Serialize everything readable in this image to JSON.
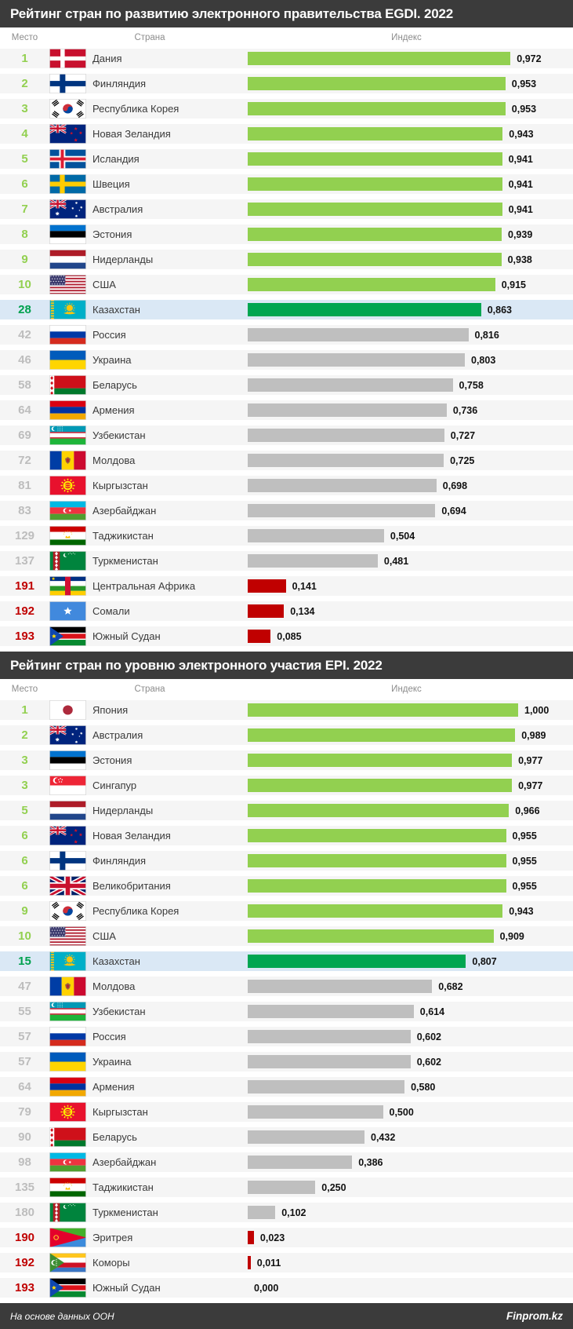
{
  "columns": {
    "rank": "Место",
    "country": "Страна",
    "index": "Индекс"
  },
  "footer": {
    "source": "На основе данных ООН",
    "brand": "Finprom.kz"
  },
  "colors": {
    "header_dark": "#3B3B3B",
    "top_green": "#92D050",
    "kazakhstan_green": "#00A651",
    "neutral_gray": "#BFBFBF",
    "bottom_red": "#C00000",
    "highlight_row_blue": "#DAE8F5",
    "row_background": "#F5F5F5"
  },
  "chart_data": [
    {
      "type": "bar",
      "title": "Рейтинг стран по развитию электронного правительства EGDI. 2022",
      "xlim": [
        0,
        1
      ],
      "legend_position": "none",
      "grid": false,
      "rows": [
        {
          "rank": "1",
          "country": "Дания",
          "flag": "denmark",
          "value": "0,972",
          "value_num": 0.972,
          "status": "top"
        },
        {
          "rank": "2",
          "country": "Финляндия",
          "flag": "finland",
          "value": "0,953",
          "value_num": 0.953,
          "status": "top"
        },
        {
          "rank": "3",
          "country": "Республика Корея",
          "flag": "korea",
          "value": "0,953",
          "value_num": 0.953,
          "status": "top"
        },
        {
          "rank": "4",
          "country": "Новая Зеландия",
          "flag": "new-zealand",
          "value": "0,943",
          "value_num": 0.943,
          "status": "top"
        },
        {
          "rank": "5",
          "country": "Исландия",
          "flag": "iceland",
          "value": "0,941",
          "value_num": 0.941,
          "status": "top"
        },
        {
          "rank": "6",
          "country": "Швеция",
          "flag": "sweden",
          "value": "0,941",
          "value_num": 0.941,
          "status": "top"
        },
        {
          "rank": "7",
          "country": "Австралия",
          "flag": "australia",
          "value": "0,941",
          "value_num": 0.941,
          "status": "top"
        },
        {
          "rank": "8",
          "country": "Эстония",
          "flag": "estonia",
          "value": "0,939",
          "value_num": 0.939,
          "status": "top"
        },
        {
          "rank": "9",
          "country": "Нидерланды",
          "flag": "netherlands",
          "value": "0,938",
          "value_num": 0.938,
          "status": "top"
        },
        {
          "rank": "10",
          "country": "США",
          "flag": "usa",
          "value": "0,915",
          "value_num": 0.915,
          "status": "top"
        },
        {
          "rank": "28",
          "country": "Казахстан",
          "flag": "kazakhstan",
          "value": "0,863",
          "value_num": 0.863,
          "status": "kz"
        },
        {
          "rank": "42",
          "country": "Россия",
          "flag": "russia",
          "value": "0,816",
          "value_num": 0.816,
          "status": "mid"
        },
        {
          "rank": "46",
          "country": "Украина",
          "flag": "ukraine",
          "value": "0,803",
          "value_num": 0.803,
          "status": "mid"
        },
        {
          "rank": "58",
          "country": "Беларусь",
          "flag": "belarus",
          "value": "0,758",
          "value_num": 0.758,
          "status": "mid"
        },
        {
          "rank": "64",
          "country": "Армения",
          "flag": "armenia",
          "value": "0,736",
          "value_num": 0.736,
          "status": "mid"
        },
        {
          "rank": "69",
          "country": "Узбекистан",
          "flag": "uzbekistan",
          "value": "0,727",
          "value_num": 0.727,
          "status": "mid"
        },
        {
          "rank": "72",
          "country": "Молдова",
          "flag": "moldova",
          "value": "0,725",
          "value_num": 0.725,
          "status": "mid"
        },
        {
          "rank": "81",
          "country": "Кыргызстан",
          "flag": "kyrgyzstan",
          "value": "0,698",
          "value_num": 0.698,
          "status": "mid"
        },
        {
          "rank": "83",
          "country": "Азербайджан",
          "flag": "azerbaijan",
          "value": "0,694",
          "value_num": 0.694,
          "status": "mid"
        },
        {
          "rank": "129",
          "country": "Таджикистан",
          "flag": "tajikistan",
          "value": "0,504",
          "value_num": 0.504,
          "status": "mid"
        },
        {
          "rank": "137",
          "country": "Туркменистан",
          "flag": "turkmenistan",
          "value": "0,481",
          "value_num": 0.481,
          "status": "mid"
        },
        {
          "rank": "191",
          "country": "Центральная Африка",
          "flag": "central-african",
          "value": "0,141",
          "value_num": 0.141,
          "status": "low"
        },
        {
          "rank": "192",
          "country": "Сомали",
          "flag": "somalia",
          "value": "0,134",
          "value_num": 0.134,
          "status": "low"
        },
        {
          "rank": "193",
          "country": "Южный Судан",
          "flag": "south-sudan",
          "value": "0,085",
          "value_num": 0.085,
          "status": "low"
        }
      ]
    },
    {
      "type": "bar",
      "title": "Рейтинг стран по уровню электронного участия EPI. 2022",
      "xlim": [
        0,
        1
      ],
      "legend_position": "none",
      "grid": false,
      "rows": [
        {
          "rank": "1",
          "country": "Япония",
          "flag": "japan",
          "value": "1,000",
          "value_num": 1.0,
          "status": "top"
        },
        {
          "rank": "2",
          "country": "Австралия",
          "flag": "australia",
          "value": "0,989",
          "value_num": 0.989,
          "status": "top"
        },
        {
          "rank": "3",
          "country": "Эстония",
          "flag": "estonia",
          "value": "0,977",
          "value_num": 0.977,
          "status": "top"
        },
        {
          "rank": "3",
          "country": "Сингапур",
          "flag": "singapore",
          "value": "0,977",
          "value_num": 0.977,
          "status": "top"
        },
        {
          "rank": "5",
          "country": "Нидерланды",
          "flag": "netherlands",
          "value": "0,966",
          "value_num": 0.966,
          "status": "top"
        },
        {
          "rank": "6",
          "country": "Новая Зеландия",
          "flag": "new-zealand",
          "value": "0,955",
          "value_num": 0.955,
          "status": "top"
        },
        {
          "rank": "6",
          "country": "Финляндия",
          "flag": "finland",
          "value": "0,955",
          "value_num": 0.955,
          "status": "top"
        },
        {
          "rank": "6",
          "country": "Великобритания",
          "flag": "uk",
          "value": "0,955",
          "value_num": 0.955,
          "status": "top"
        },
        {
          "rank": "9",
          "country": "Республика Корея",
          "flag": "korea",
          "value": "0,943",
          "value_num": 0.943,
          "status": "top"
        },
        {
          "rank": "10",
          "country": "США",
          "flag": "usa",
          "value": "0,909",
          "value_num": 0.909,
          "status": "top"
        },
        {
          "rank": "15",
          "country": "Казахстан",
          "flag": "kazakhstan",
          "value": "0,807",
          "value_num": 0.807,
          "status": "kz"
        },
        {
          "rank": "47",
          "country": "Молдова",
          "flag": "moldova",
          "value": "0,682",
          "value_num": 0.682,
          "status": "mid"
        },
        {
          "rank": "55",
          "country": "Узбекистан",
          "flag": "uzbekistan",
          "value": "0,614",
          "value_num": 0.614,
          "status": "mid"
        },
        {
          "rank": "57",
          "country": "Россия",
          "flag": "russia",
          "value": "0,602",
          "value_num": 0.602,
          "status": "mid"
        },
        {
          "rank": "57",
          "country": "Украина",
          "flag": "ukraine",
          "value": "0,602",
          "value_num": 0.602,
          "status": "mid"
        },
        {
          "rank": "64",
          "country": "Армения",
          "flag": "armenia",
          "value": "0,580",
          "value_num": 0.58,
          "status": "mid"
        },
        {
          "rank": "79",
          "country": "Кыргызстан",
          "flag": "kyrgyzstan",
          "value": "0,500",
          "value_num": 0.5,
          "status": "mid"
        },
        {
          "rank": "90",
          "country": "Беларусь",
          "flag": "belarus",
          "value": "0,432",
          "value_num": 0.432,
          "status": "mid"
        },
        {
          "rank": "98",
          "country": "Азербайджан",
          "flag": "azerbaijan",
          "value": "0,386",
          "value_num": 0.386,
          "status": "mid"
        },
        {
          "rank": "135",
          "country": "Таджикистан",
          "flag": "tajikistan",
          "value": "0,250",
          "value_num": 0.25,
          "status": "mid"
        },
        {
          "rank": "180",
          "country": "Туркменистан",
          "flag": "turkmenistan",
          "value": "0,102",
          "value_num": 0.102,
          "status": "mid"
        },
        {
          "rank": "190",
          "country": "Эритрея",
          "flag": "eritrea",
          "value": "0,023",
          "value_num": 0.023,
          "status": "low"
        },
        {
          "rank": "192",
          "country": "Коморы",
          "flag": "comoros",
          "value": "0,011",
          "value_num": 0.011,
          "status": "low"
        },
        {
          "rank": "193",
          "country": "Южный Судан",
          "flag": "south-sudan",
          "value": "0,000",
          "value_num": 0.0,
          "status": "low"
        }
      ]
    }
  ]
}
